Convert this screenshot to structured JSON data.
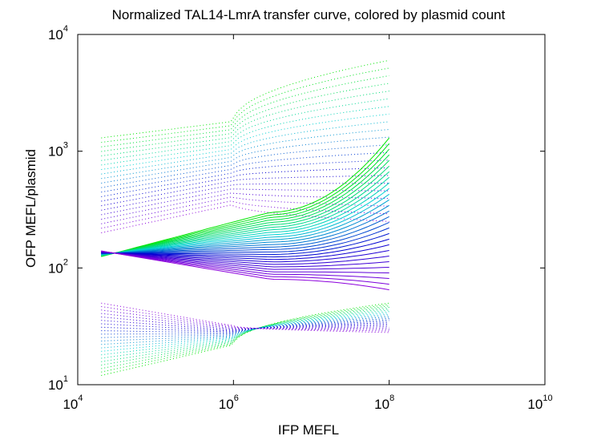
{
  "chart_data": {
    "type": "line",
    "title": "Normalized TAL14-LmrA transfer curve, colored by plasmid count",
    "xlabel": "IFP MEFL",
    "ylabel": "OFP MEFL/plasmid",
    "xscale": "log",
    "yscale": "log",
    "xlim": [
      10000,
      10000000000
    ],
    "ylim": [
      10,
      10000
    ],
    "x_ticks": [
      {
        "base": "10",
        "exp": "4"
      },
      {
        "base": "10",
        "exp": "6"
      },
      {
        "base": "10",
        "exp": "8"
      },
      {
        "base": "10",
        "exp": "10"
      }
    ],
    "y_ticks": [
      {
        "base": "10",
        "exp": "1"
      },
      {
        "base": "10",
        "exp": "2"
      },
      {
        "base": "10",
        "exp": "3"
      },
      {
        "base": "10",
        "exp": "4"
      }
    ],
    "grid": false,
    "legend": "none",
    "colormap": [
      "#00e600",
      "#00d2d2",
      "#0000d2",
      "#8c00dc"
    ],
    "series_groups": [
      {
        "style": "dotted",
        "count": 22,
        "x_start": 20000,
        "x_end": 100000000,
        "y_start": [
          1300,
          200
        ],
        "y_mid": [
          1800,
          350
        ],
        "y_end": [
          6000,
          250
        ],
        "y_mid_at_x": 1000000,
        "curve_shape": "concave"
      },
      {
        "style": "solid",
        "count": 28,
        "x_start": 20000,
        "x_end": 100000000,
        "y_start": [
          125,
          140
        ],
        "y_mid": [
          300,
          80
        ],
        "y_end": [
          1300,
          65
        ],
        "y_mid_at_x": 3000000,
        "curve_shape": "convex"
      },
      {
        "style": "dotted",
        "count": 22,
        "x_start": 20000,
        "x_end": 100000000,
        "y_start": [
          12,
          50
        ],
        "y_mid": [
          22,
          32
        ],
        "y_end": [
          50,
          28
        ],
        "y_mid_at_x": 1000000,
        "curve_shape": "concave"
      }
    ]
  }
}
